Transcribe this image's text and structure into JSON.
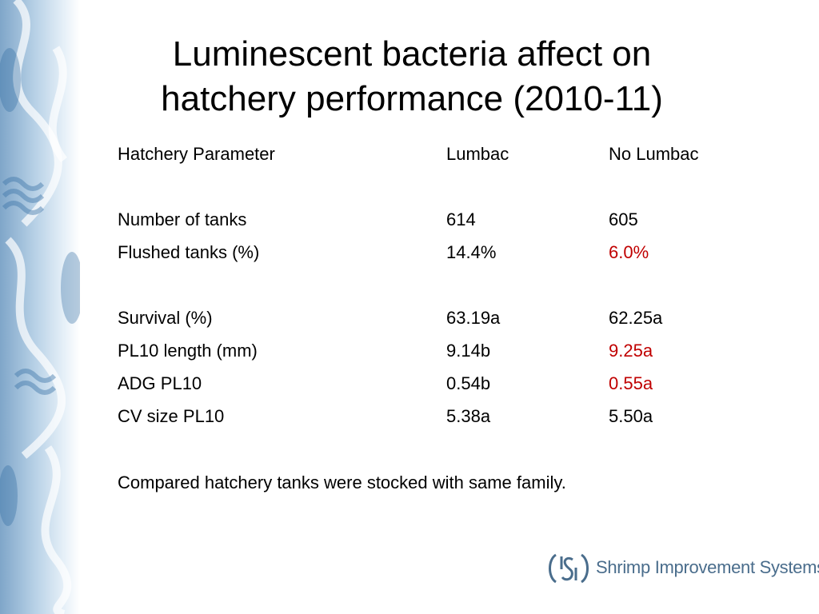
{
  "slide": {
    "title_line1": "Luminescent bacteria affect on",
    "title_line2": "hatchery performance (2010-11)"
  },
  "table": {
    "headers": [
      "Hatchery Parameter",
      "Lumbac",
      "No Lumbac"
    ],
    "rows": [
      {
        "param": "Number of tanks",
        "lumbac": "614",
        "no_lumbac": "605",
        "highlight": false
      },
      {
        "param": "Flushed tanks (%)",
        "lumbac": "14.4%",
        "no_lumbac": "6.0%",
        "highlight": true
      },
      {
        "param": "Survival (%)",
        "lumbac": "63.19a",
        "no_lumbac": "62.25a",
        "highlight": false
      },
      {
        "param": "PL10 length (mm)",
        "lumbac": "9.14b",
        "no_lumbac": "9.25a",
        "highlight": true
      },
      {
        "param": "ADG PL10",
        "lumbac": "0.54b",
        "no_lumbac": "0.55a",
        "highlight": true
      },
      {
        "param": "CV size PL10",
        "lumbac": "5.38a",
        "no_lumbac": "5.50a",
        "highlight": false
      }
    ]
  },
  "note": "Compared hatchery tanks were stocked with same family.",
  "logo": {
    "text": "Shrimp Improvement Systems",
    "icon": "sis-logo-icon",
    "color": "#4a6d8c"
  },
  "colors": {
    "highlight": "#c00000",
    "strip": "#9dbcd9"
  }
}
